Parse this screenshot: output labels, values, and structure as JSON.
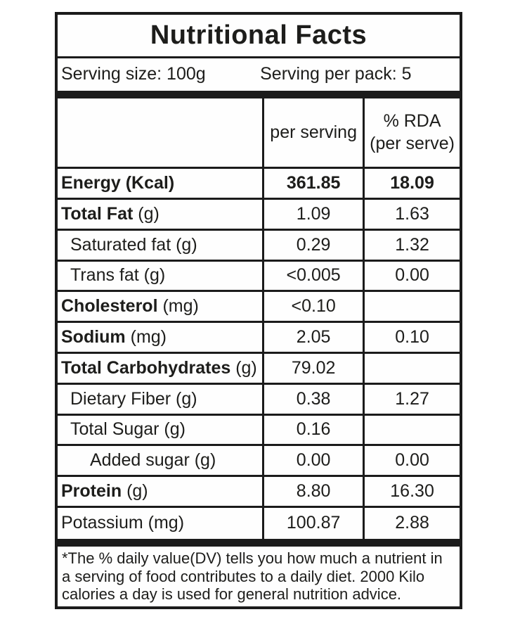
{
  "title": "Nutritional Facts",
  "serving_info": {
    "serving_size": "Serving size: 100g",
    "serving_per_pack": "Serving per pack: 5"
  },
  "columns": {
    "nutrient": "",
    "per_serving": "per serving",
    "rda_line1": "% RDA",
    "rda_line2": "(per serve)"
  },
  "rows": [
    {
      "label_bold": "Energy (Kcal)",
      "label_rest": "",
      "per_serving": "361.85",
      "rda": "18.09"
    },
    {
      "label_bold": "Total Fat",
      "label_rest": " (g)",
      "per_serving": "1.09",
      "rda": "1.63"
    },
    {
      "label_bold": "",
      "label_rest": "Saturated fat (g)",
      "per_serving": "0.29",
      "rda": "1.32"
    },
    {
      "label_bold": "",
      "label_rest": "Trans fat (g)",
      "per_serving": "<0.005",
      "rda": "0.00"
    },
    {
      "label_bold": "Cholesterol",
      "label_rest": " (mg)",
      "per_serving": "<0.10",
      "rda": ""
    },
    {
      "label_bold": "Sodium",
      "label_rest": " (mg)",
      "per_serving": "2.05",
      "rda": "0.10"
    },
    {
      "label_bold": "Total Carbohydrates",
      "label_rest": " (g)",
      "per_serving": "79.02",
      "rda": ""
    },
    {
      "label_bold": "",
      "label_rest": "Dietary Fiber (g)",
      "per_serving": "0.38",
      "rda": "1.27"
    },
    {
      "label_bold": "",
      "label_rest": "Total Sugar (g)",
      "per_serving": "0.16",
      "rda": ""
    },
    {
      "label_bold": "",
      "label_rest": "Added sugar (g)",
      "per_serving": "0.00",
      "rda": "0.00"
    },
    {
      "label_bold": "Protein",
      "label_rest": " (g)",
      "per_serving": "8.80",
      "rda": "16.30"
    },
    {
      "label_bold": "",
      "label_rest": "Potassium (mg)",
      "per_serving": "100.87",
      "rda": "2.88"
    }
  ],
  "footnote": "*The % daily value(DV) tells you how much a nutrient in a serving of food contributes to a daily diet. 2000 Kilo calories a day is used for general nutrition advice.",
  "colors": {
    "border": "#1b1b1b",
    "text": "#1d1d1b",
    "background": "#ffffff"
  }
}
